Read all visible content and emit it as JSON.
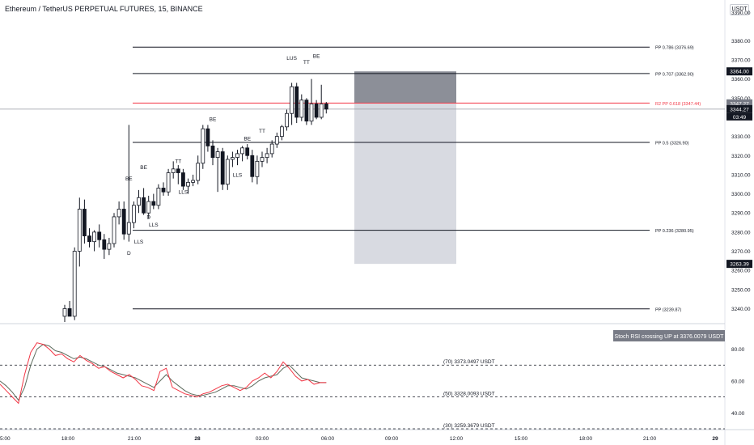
{
  "header": {
    "title": "Ethereum / TetherUS PERPETUAL FUTURES, 15, BINANCE",
    "currency": "USDT",
    "currency_scroll": "3390.00"
  },
  "colors": {
    "candle_up": "#ffffff",
    "candle_down": "#131722",
    "candle_border": "#131722",
    "pivot_line": "#131722",
    "pivot_red": "#f23645",
    "stop_zone": "#787b86",
    "target_zone": "#d1d4dc",
    "rsi_k": "#f23645",
    "rsi_d": "#5d6b5d",
    "alert_box": "#787b86"
  },
  "chart_data": {
    "type": "candlestick",
    "symbol": "Ethereum / TetherUS PERPETUAL FUTURES",
    "interval": "15",
    "exchange": "BINANCE",
    "x_ticks": [
      "5:00",
      "18:00",
      "21:00",
      "28",
      "03:00",
      "06:00",
      "09:00",
      "12:00",
      "15:00",
      "18:00",
      "21:00",
      "29"
    ],
    "y_ticks": [
      3240,
      3250,
      3260,
      3270,
      3280,
      3290,
      3300,
      3310,
      3320,
      3330,
      3340,
      3350,
      3360,
      3370,
      3380
    ],
    "ylim": [
      3233,
      3392
    ],
    "candles": [
      {
        "o": 3236.0,
        "h": 3242.0,
        "l": 3233.0,
        "c": 3240.0
      },
      {
        "o": 3240.0,
        "h": 3244.0,
        "l": 3236.0,
        "c": 3236.0
      },
      {
        "o": 3236.0,
        "h": 3272.0,
        "l": 3234.0,
        "c": 3270.0
      },
      {
        "o": 3270.0,
        "h": 3298.0,
        "l": 3262.0,
        "c": 3292.0
      },
      {
        "o": 3292.0,
        "h": 3297.0,
        "l": 3274.0,
        "c": 3278.0
      },
      {
        "o": 3278.0,
        "h": 3282.0,
        "l": 3272.0,
        "c": 3275.0
      },
      {
        "o": 3275.0,
        "h": 3281.0,
        "l": 3270.0,
        "c": 3280.0
      },
      {
        "o": 3280.0,
        "h": 3284.0,
        "l": 3272.0,
        "c": 3276.0
      },
      {
        "o": 3276.0,
        "h": 3279.0,
        "l": 3266.0,
        "c": 3271.0
      },
      {
        "o": 3271.0,
        "h": 3277.0,
        "l": 3268.0,
        "c": 3274.0
      },
      {
        "o": 3274.0,
        "h": 3290.0,
        "l": 3272.0,
        "c": 3288.0
      },
      {
        "o": 3288.0,
        "h": 3296.0,
        "l": 3284.0,
        "c": 3292.0
      },
      {
        "o": 3292.0,
        "h": 3296.0,
        "l": 3276.0,
        "c": 3279.0
      },
      {
        "o": 3279.0,
        "h": 3336.0,
        "l": 3275.0,
        "c": 3285.0
      },
      {
        "o": 3285.0,
        "h": 3296.0,
        "l": 3282.0,
        "c": 3294.0
      },
      {
        "o": 3294.0,
        "h": 3302.0,
        "l": 3290.0,
        "c": 3298.0
      },
      {
        "o": 3298.0,
        "h": 3303.0,
        "l": 3289.0,
        "c": 3290.0
      },
      {
        "o": 3290.0,
        "h": 3299.0,
        "l": 3287.0,
        "c": 3296.0
      },
      {
        "o": 3296.0,
        "h": 3300.0,
        "l": 3292.0,
        "c": 3294.0
      },
      {
        "o": 3294.0,
        "h": 3305.0,
        "l": 3292.0,
        "c": 3303.0
      },
      {
        "o": 3303.0,
        "h": 3306.0,
        "l": 3299.0,
        "c": 3301.0
      },
      {
        "o": 3301.0,
        "h": 3313.0,
        "l": 3299.0,
        "c": 3311.0
      },
      {
        "o": 3311.0,
        "h": 3317.0,
        "l": 3308.0,
        "c": 3313.0
      },
      {
        "o": 3313.0,
        "h": 3315.0,
        "l": 3305.0,
        "c": 3311.0
      },
      {
        "o": 3311.0,
        "h": 3313.0,
        "l": 3302.0,
        "c": 3304.0
      },
      {
        "o": 3304.0,
        "h": 3308.0,
        "l": 3300.0,
        "c": 3306.0
      },
      {
        "o": 3306.0,
        "h": 3310.0,
        "l": 3304.0,
        "c": 3307.0
      },
      {
        "o": 3307.0,
        "h": 3320.0,
        "l": 3305.0,
        "c": 3316.0
      },
      {
        "o": 3316.0,
        "h": 3336.0,
        "l": 3313.0,
        "c": 3334.0
      },
      {
        "o": 3334.0,
        "h": 3336.0,
        "l": 3322.0,
        "c": 3325.0
      },
      {
        "o": 3325.0,
        "h": 3328.0,
        "l": 3315.0,
        "c": 3319.0
      },
      {
        "o": 3319.0,
        "h": 3324.0,
        "l": 3301.0,
        "c": 3322.0
      },
      {
        "o": 3322.0,
        "h": 3324.0,
        "l": 3302.0,
        "c": 3305.0
      },
      {
        "o": 3305.0,
        "h": 3320.0,
        "l": 3302.0,
        "c": 3318.0
      },
      {
        "o": 3318.0,
        "h": 3322.0,
        "l": 3314.0,
        "c": 3319.0
      },
      {
        "o": 3319.0,
        "h": 3323.0,
        "l": 3315.0,
        "c": 3321.0
      },
      {
        "o": 3321.0,
        "h": 3325.0,
        "l": 3317.0,
        "c": 3324.0
      },
      {
        "o": 3324.0,
        "h": 3326.0,
        "l": 3318.0,
        "c": 3320.0
      },
      {
        "o": 3320.0,
        "h": 3323.0,
        "l": 3306.0,
        "c": 3309.0
      },
      {
        "o": 3309.0,
        "h": 3320.0,
        "l": 3305.0,
        "c": 3317.0
      },
      {
        "o": 3317.0,
        "h": 3322.0,
        "l": 3314.0,
        "c": 3319.0
      },
      {
        "o": 3319.0,
        "h": 3324.0,
        "l": 3316.0,
        "c": 3321.0
      },
      {
        "o": 3321.0,
        "h": 3328.0,
        "l": 3319.0,
        "c": 3326.0
      },
      {
        "o": 3326.0,
        "h": 3332.0,
        "l": 3324.0,
        "c": 3330.0
      },
      {
        "o": 3330.0,
        "h": 3336.0,
        "l": 3328.0,
        "c": 3335.0
      },
      {
        "o": 3335.0,
        "h": 3344.0,
        "l": 3333.0,
        "c": 3342.0
      },
      {
        "o": 3342.0,
        "h": 3358.0,
        "l": 3336.0,
        "c": 3356.0
      },
      {
        "o": 3356.0,
        "h": 3358.0,
        "l": 3337.0,
        "c": 3340.0
      },
      {
        "o": 3340.0,
        "h": 3352.0,
        "l": 3338.0,
        "c": 3349.0
      },
      {
        "o": 3349.0,
        "h": 3350.0,
        "l": 3336.0,
        "c": 3338.0
      },
      {
        "o": 3338.0,
        "h": 3360.0,
        "l": 3336.0,
        "c": 3347.0
      },
      {
        "o": 3347.0,
        "h": 3349.0,
        "l": 3339.0,
        "c": 3340.0
      },
      {
        "o": 3340.0,
        "h": 3357.0,
        "l": 3339.0,
        "c": 3347.0
      },
      {
        "o": 3347.0,
        "h": 3348.0,
        "l": 3342.0,
        "c": 3344.27
      }
    ],
    "pivot_levels": [
      {
        "value": 3376.69,
        "label": "PP 0.786 (3376.69)",
        "color": "#131722"
      },
      {
        "value": 3362.9,
        "label": "PP 0.707 (3362.90)",
        "color": "#131722"
      },
      {
        "value": 3347.44,
        "label": "R2 PP 0.618 (3347.44)",
        "color": "#f23645"
      },
      {
        "value": 3326.9,
        "label": "PP 0.5 (3326.90)",
        "color": "#131722"
      },
      {
        "value": 3280.95,
        "label": "PP 0.236 (3280.95)",
        "color": "#131722"
      },
      {
        "value": 3239.87,
        "label": "PP (3239.87)",
        "color": "#131722"
      }
    ],
    "price_labels": [
      {
        "value": 3364.0,
        "text": "3364.00",
        "style": "dark"
      },
      {
        "value": 3347.27,
        "text": "3347.27",
        "style": "gray"
      },
      {
        "value": 3344.27,
        "text": "3344.27",
        "style": "dark"
      },
      {
        "value": 3263.39,
        "text": "3263.39",
        "style": "dark"
      }
    ],
    "countdown": "03:49",
    "last_price": 3344.27,
    "position": {
      "entry": 3347.27,
      "stop": 3364.0,
      "target": 3263.39
    },
    "annotations": [
      {
        "text": "BE",
        "candle": 13,
        "price": 3307.0
      },
      {
        "text": "BE",
        "candle": 16,
        "price": 3313.0
      },
      {
        "text": "D",
        "candle": 17,
        "price": 3287.0
      },
      {
        "text": "D",
        "candle": 13,
        "price": 3268.0
      },
      {
        "text": "LLS",
        "candle": 15,
        "price": 3274.0
      },
      {
        "text": "LLS",
        "candle": 18,
        "price": 3283.0
      },
      {
        "text": "TT",
        "candle": 23,
        "price": 3316.0
      },
      {
        "text": "LLS",
        "candle": 24,
        "price": 3300.0
      },
      {
        "text": "BE",
        "candle": 30,
        "price": 3338.0
      },
      {
        "text": "LLS",
        "candle": 35,
        "price": 3309.0
      },
      {
        "text": "BE",
        "candle": 37,
        "price": 3328.0
      },
      {
        "text": "TT",
        "candle": 40,
        "price": 3332.0
      },
      {
        "text": "LUS",
        "candle": 46,
        "price": 3370.0
      },
      {
        "text": "TT",
        "candle": 49,
        "price": 3368.0
      },
      {
        "text": "BE",
        "candle": 51,
        "price": 3371.0
      }
    ],
    "stoch_rsi": {
      "y_ticks": [
        40,
        60,
        80
      ],
      "ylim": [
        30,
        95
      ],
      "k": [
        58,
        54,
        50,
        46,
        64,
        78,
        84,
        83,
        80,
        76,
        77,
        74,
        72,
        76,
        73,
        71,
        68,
        69,
        66,
        64,
        62,
        64,
        61,
        57,
        56,
        54,
        66,
        68,
        56,
        54,
        52,
        51,
        50,
        52,
        53,
        55,
        57,
        58,
        56,
        54,
        56,
        60,
        62,
        65,
        62,
        66,
        72,
        68,
        63,
        60,
        61,
        58,
        59,
        59
      ],
      "d": [
        60,
        57,
        53,
        48,
        56,
        70,
        80,
        83,
        82,
        79,
        78,
        76,
        74,
        75,
        74,
        72,
        70,
        69,
        67,
        65,
        64,
        63,
        62,
        60,
        58,
        56,
        60,
        64,
        60,
        57,
        54,
        52,
        51,
        51,
        52,
        53,
        55,
        57,
        57,
        56,
        55,
        57,
        60,
        62,
        63,
        64,
        68,
        70,
        66,
        62,
        61,
        60,
        59,
        59
      ],
      "levels": [
        {
          "value": 70,
          "label": "(70) 3373.0497 USDT"
        },
        {
          "value": 50,
          "label": "(50) 3328.0093 USDT"
        },
        {
          "value": 30,
          "label": "(30) 3259.3679 USDT"
        }
      ],
      "alert": "Stoch RSI crossing UP at 3376.0079 USDT"
    }
  }
}
